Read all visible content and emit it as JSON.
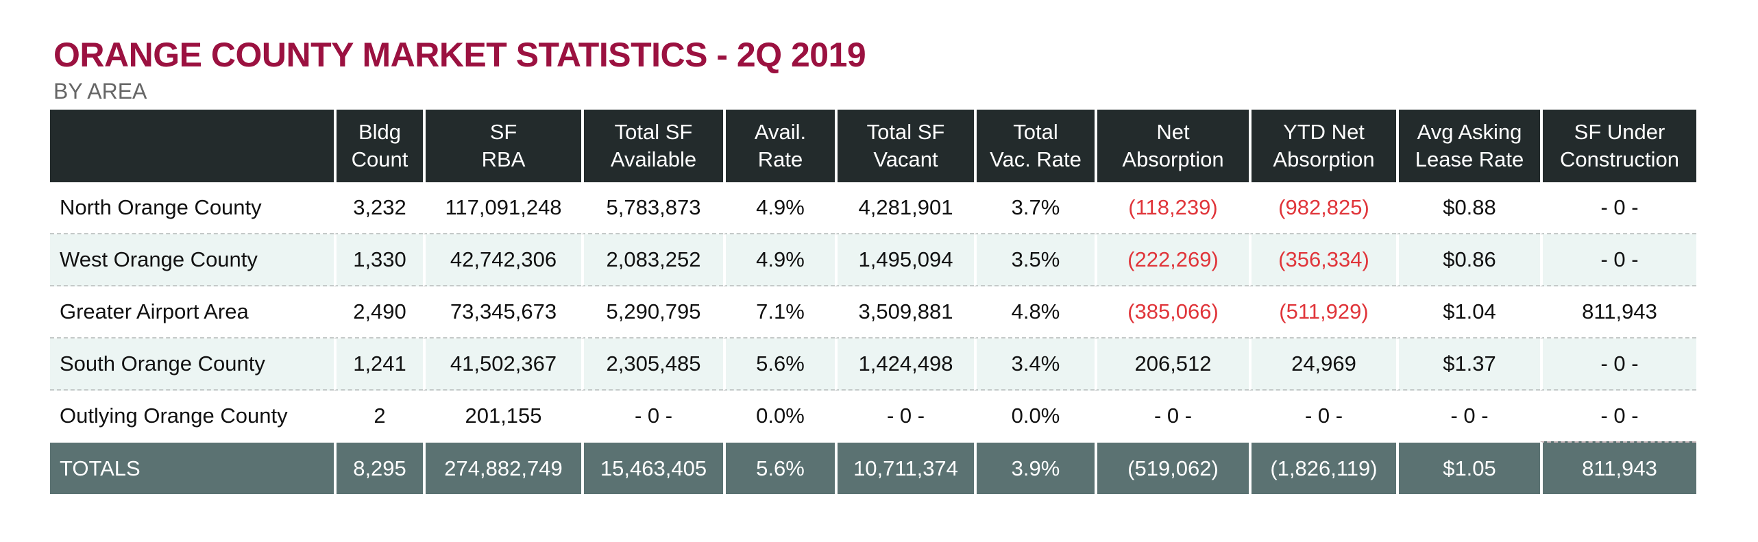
{
  "header": {
    "title": "ORANGE COUNTY MARKET STATISTICS - 2Q 2019",
    "subtitle": "BY AREA"
  },
  "colors": {
    "title": "#9b1140",
    "header_bg": "#232b2c",
    "totals_bg": "#5b7272",
    "alt_row_bg": "#ecf5f3",
    "negative": "#e0353a"
  },
  "table": {
    "columns": [
      {
        "line1": "",
        "line2": ""
      },
      {
        "line1": "Bldg",
        "line2": "Count"
      },
      {
        "line1": "SF",
        "line2": "RBA"
      },
      {
        "line1": "Total SF",
        "line2": "Available"
      },
      {
        "line1": "Avail.",
        "line2": "Rate"
      },
      {
        "line1": "Total SF",
        "line2": "Vacant"
      },
      {
        "line1": "Total",
        "line2": "Vac. Rate"
      },
      {
        "line1": "Net",
        "line2": "Absorption"
      },
      {
        "line1": "YTD Net",
        "line2": "Absorption"
      },
      {
        "line1": "Avg Asking",
        "line2": "Lease Rate"
      },
      {
        "line1": "SF Under",
        "line2": "Construction"
      }
    ],
    "rows": [
      {
        "area": "North Orange County",
        "bldg_count": "3,232",
        "sf_rba": "117,091,248",
        "total_sf_available": "5,783,873",
        "avail_rate": "4.9%",
        "total_sf_vacant": "4,281,901",
        "total_vac_rate": "3.7%",
        "net_absorption": "(118,239)",
        "ytd_net_absorption": "(982,825)",
        "avg_asking_lease_rate": "$0.88",
        "sf_under_construction": "- 0 -"
      },
      {
        "area": "West Orange County",
        "bldg_count": "1,330",
        "sf_rba": "42,742,306",
        "total_sf_available": "2,083,252",
        "avail_rate": "4.9%",
        "total_sf_vacant": "1,495,094",
        "total_vac_rate": "3.5%",
        "net_absorption": "(222,269)",
        "ytd_net_absorption": "(356,334)",
        "avg_asking_lease_rate": "$0.86",
        "sf_under_construction": "- 0 -"
      },
      {
        "area": "Greater Airport Area",
        "bldg_count": "2,490",
        "sf_rba": "73,345,673",
        "total_sf_available": "5,290,795",
        "avail_rate": "7.1%",
        "total_sf_vacant": "3,509,881",
        "total_vac_rate": "4.8%",
        "net_absorption": "(385,066)",
        "ytd_net_absorption": "(511,929)",
        "avg_asking_lease_rate": "$1.04",
        "sf_under_construction": "811,943"
      },
      {
        "area": "South Orange County",
        "bldg_count": "1,241",
        "sf_rba": "41,502,367",
        "total_sf_available": "2,305,485",
        "avail_rate": "5.6%",
        "total_sf_vacant": "1,424,498",
        "total_vac_rate": "3.4%",
        "net_absorption": "206,512",
        "ytd_net_absorption": "24,969",
        "avg_asking_lease_rate": "$1.37",
        "sf_under_construction": "- 0 -"
      },
      {
        "area": "Outlying Orange County",
        "bldg_count": "2",
        "sf_rba": "201,155",
        "total_sf_available": "- 0 -",
        "avail_rate": "0.0%",
        "total_sf_vacant": "- 0 -",
        "total_vac_rate": "0.0%",
        "net_absorption": "- 0 -",
        "ytd_net_absorption": "- 0 -",
        "avg_asking_lease_rate": "- 0 -",
        "sf_under_construction": "- 0 -"
      }
    ],
    "totals": {
      "area": "TOTALS",
      "bldg_count": "8,295",
      "sf_rba": "274,882,749",
      "total_sf_available": "15,463,405",
      "avail_rate": "5.6%",
      "total_sf_vacant": "10,711,374",
      "total_vac_rate": "3.9%",
      "net_absorption": "(519,062)",
      "ytd_net_absorption": "(1,826,119)",
      "avg_asking_lease_rate": "$1.05",
      "sf_under_construction": "811,943"
    }
  }
}
